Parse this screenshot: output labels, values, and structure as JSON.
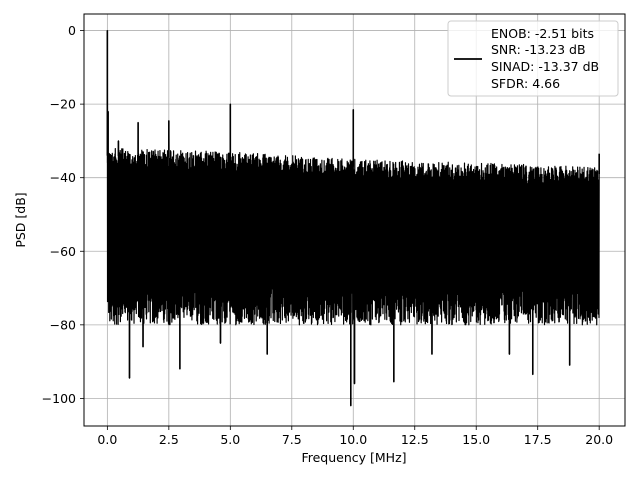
{
  "chart_data": {
    "type": "line",
    "xlabel": "Frequency [MHz]",
    "ylabel": "PSD [dB]",
    "xlim": [
      -0.95,
      21.05
    ],
    "ylim": [
      -107.5,
      4.5
    ],
    "xticks": [
      0.0,
      2.5,
      5.0,
      7.5,
      10.0,
      12.5,
      15.0,
      17.5,
      20.0
    ],
    "xtick_labels": [
      "0.0",
      "2.5",
      "5.0",
      "7.5",
      "10.0",
      "12.5",
      "15.0",
      "17.5",
      "20.0"
    ],
    "yticks": [
      0,
      -20,
      -40,
      -60,
      -80,
      -100
    ],
    "ytick_labels": [
      "0",
      "−20",
      "−40",
      "−60",
      "−80",
      "−100"
    ],
    "grid": true,
    "legend_position": "top-right",
    "series": [
      {
        "color": "#000000",
        "noise_band": {
          "x_range": [
            0.0,
            20.0
          ],
          "upper_envelope": [
            [
              0.0,
              -32
            ],
            [
              5.0,
              -33
            ],
            [
              10.0,
              -35
            ],
            [
              15.0,
              -36
            ],
            [
              20.0,
              -37
            ]
          ],
          "typical_floor": -75
        },
        "spikes": [
          {
            "x": 0.0,
            "y": 0.0
          },
          {
            "x": 0.03,
            "y": -22
          },
          {
            "x": 0.45,
            "y": -30
          },
          {
            "x": 1.25,
            "y": -25
          },
          {
            "x": 2.5,
            "y": -24.5
          },
          {
            "x": 5.0,
            "y": -20
          },
          {
            "x": 10.0,
            "y": -21.5
          },
          {
            "x": 20.0,
            "y": -33.5
          }
        ],
        "dips": [
          {
            "x": 0.9,
            "y": -94.5
          },
          {
            "x": 1.45,
            "y": -86
          },
          {
            "x": 2.95,
            "y": -92
          },
          {
            "x": 4.6,
            "y": -85
          },
          {
            "x": 6.5,
            "y": -88
          },
          {
            "x": 9.9,
            "y": -102
          },
          {
            "x": 10.05,
            "y": -96
          },
          {
            "x": 11.65,
            "y": -95.5
          },
          {
            "x": 13.2,
            "y": -88
          },
          {
            "x": 16.35,
            "y": -88
          },
          {
            "x": 17.3,
            "y": -93.5
          },
          {
            "x": 18.8,
            "y": -91
          }
        ]
      }
    ],
    "legend": {
      "lines": [
        "ENOB: -2.51 bits",
        "SNR: -13.23 dB",
        "SINAD: -13.37 dB",
        "SFDR: 4.66"
      ]
    }
  }
}
